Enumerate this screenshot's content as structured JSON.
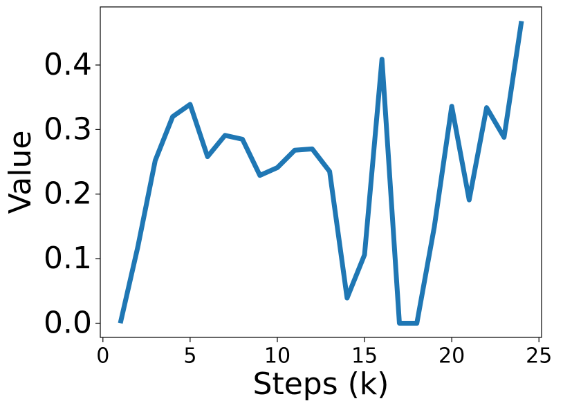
{
  "chart_data": {
    "type": "line",
    "xlabel": "Steps (k)",
    "ylabel": "Value",
    "x": [
      1,
      2,
      3,
      4,
      5,
      6,
      7,
      8,
      9,
      10,
      11,
      12,
      13,
      14,
      15,
      16,
      17,
      18,
      19,
      20,
      21,
      22,
      23,
      24
    ],
    "series": [
      {
        "color": "#1f77b4",
        "values": [
          0.0,
          0.118,
          0.252,
          0.32,
          0.339,
          0.258,
          0.291,
          0.285,
          0.229,
          0.241,
          0.268,
          0.27,
          0.235,
          0.039,
          0.106,
          0.409,
          0.0,
          0.0,
          0.149,
          0.336,
          0.191,
          0.334,
          0.288,
          0.468
        ]
      }
    ],
    "xlim": [
      -0.15,
      25.15
    ],
    "xticks": [
      0,
      5,
      10,
      15,
      20,
      25
    ],
    "ylim": [
      -0.022,
      0.49
    ],
    "yticks": [
      {
        "value": 0,
        "label": "0.0"
      },
      0.1,
      0.2,
      0.3,
      0.4
    ],
    "grid": false
  }
}
